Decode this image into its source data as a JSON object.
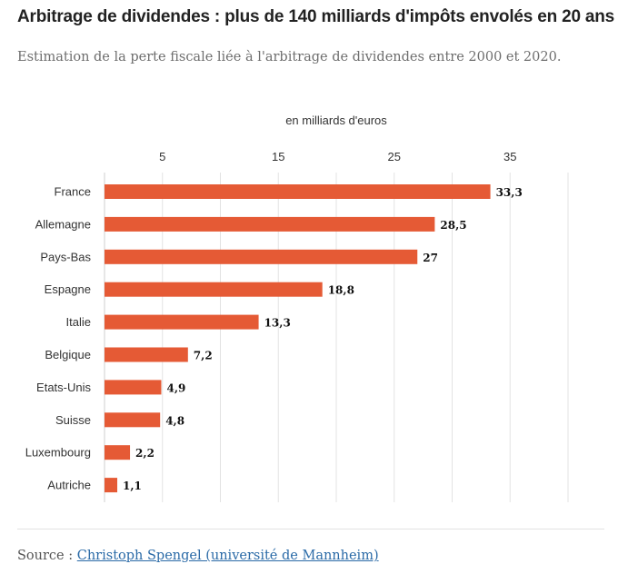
{
  "header": {
    "title": "Arbitrage de dividendes : plus de 140 milliards d'impôts envolés en 20 ans",
    "subtitle": "Estimation de la perte fiscale liée à l'arbitrage de dividendes entre 2000 et 2020."
  },
  "chart_data": {
    "type": "bar",
    "orientation": "horizontal",
    "title": "",
    "xlabel": "en milliards d'euros",
    "ylabel": "",
    "categories": [
      "France",
      "Allemagne",
      "Pays-Bas",
      "Espagne",
      "Italie",
      "Belgique",
      "Etats-Unis",
      "Suisse",
      "Luxembourg",
      "Autriche"
    ],
    "values": [
      33.3,
      28.5,
      27,
      18.8,
      13.3,
      7.2,
      4.9,
      4.8,
      2.2,
      1.1
    ],
    "value_labels": [
      "33,3",
      "28,5",
      "27",
      "18,8",
      "13,3",
      "7,2",
      "4,9",
      "4,8",
      "2,2",
      "1,1"
    ],
    "xlim": [
      0,
      40
    ],
    "xticks": [
      5,
      15,
      25,
      35
    ],
    "grid": true,
    "axis_position": "top",
    "bar_color": "#e55a35"
  },
  "footer": {
    "source_prefix": "Source : ",
    "source_link": "Christoph Spengel (université de Mannheim)"
  }
}
